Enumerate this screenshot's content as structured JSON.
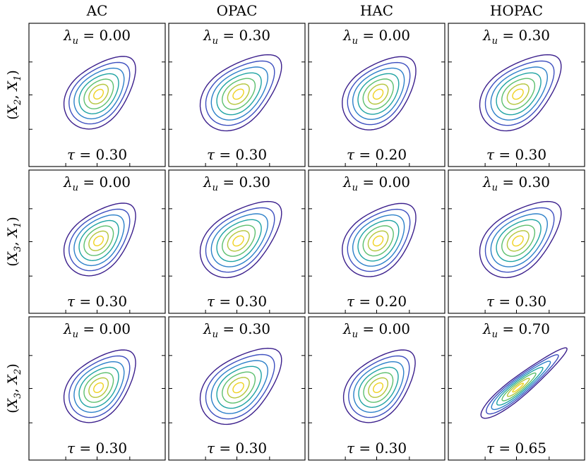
{
  "chart_data": {
    "type": "contour",
    "title": "",
    "columns": [
      "AC",
      "OPAC",
      "HAC",
      "HOPAC"
    ],
    "rows": [
      "(X2, X1)",
      "(X3, X1)",
      "(X3, X2)"
    ],
    "contour_levels": 7,
    "colormap": [
      "#3b1f8c",
      "#3d4fbf",
      "#2c80c9",
      "#1fa3a3",
      "#5cbf6e",
      "#b4c53c",
      "#f0d21f"
    ],
    "panels": [
      {
        "row": 0,
        "col": 0,
        "lambda_u_label": "0.00",
        "tau_label": "0.30",
        "lambda_u": 0.0,
        "tau": 0.3,
        "shape": "ac"
      },
      {
        "row": 0,
        "col": 1,
        "lambda_u_label": "0.30",
        "tau_label": "0.30",
        "lambda_u": 0.3,
        "tau": 0.3,
        "shape": "opac"
      },
      {
        "row": 0,
        "col": 2,
        "lambda_u_label": "0.00",
        "tau_label": "0.20",
        "lambda_u": 0.0,
        "tau": 0.2,
        "shape": "hac"
      },
      {
        "row": 0,
        "col": 3,
        "lambda_u_label": "0.30",
        "tau_label": "0.30",
        "lambda_u": 0.3,
        "tau": 0.3,
        "shape": "opac"
      },
      {
        "row": 1,
        "col": 0,
        "lambda_u_label": "0.00",
        "tau_label": "0.30",
        "lambda_u": 0.0,
        "tau": 0.3,
        "shape": "ac"
      },
      {
        "row": 1,
        "col": 1,
        "lambda_u_label": "0.30",
        "tau_label": "0.30",
        "lambda_u": 0.3,
        "tau": 0.3,
        "shape": "opac"
      },
      {
        "row": 1,
        "col": 2,
        "lambda_u_label": "0.00",
        "tau_label": "0.20",
        "lambda_u": 0.0,
        "tau": 0.2,
        "shape": "hac"
      },
      {
        "row": 1,
        "col": 3,
        "lambda_u_label": "0.30",
        "tau_label": "0.30",
        "lambda_u": 0.3,
        "tau": 0.3,
        "shape": "opac"
      },
      {
        "row": 2,
        "col": 0,
        "lambda_u_label": "0.00",
        "tau_label": "0.30",
        "lambda_u": 0.0,
        "tau": 0.3,
        "shape": "ac"
      },
      {
        "row": 2,
        "col": 1,
        "lambda_u_label": "0.30",
        "tau_label": "0.30",
        "lambda_u": 0.3,
        "tau": 0.3,
        "shape": "opac"
      },
      {
        "row": 2,
        "col": 2,
        "lambda_u_label": "0.00",
        "tau_label": "0.30",
        "lambda_u": 0.0,
        "tau": 0.3,
        "shape": "ac"
      },
      {
        "row": 2,
        "col": 3,
        "lambda_u_label": "0.70",
        "tau_label": "0.65",
        "lambda_u": 0.7,
        "tau": 0.65,
        "shape": "strong"
      }
    ]
  }
}
